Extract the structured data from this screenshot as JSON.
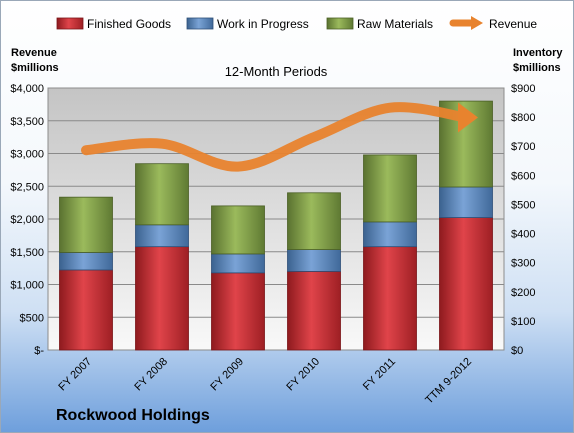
{
  "company_name": "Rockwood Holdings",
  "chart_data": {
    "type": "bar",
    "stacked": true,
    "title": "12-Month Periods",
    "categories": [
      "FY 2007",
      "FY 2008",
      "FY 2009",
      "FY 2010",
      "FY 2011",
      "TTM 9-2012"
    ],
    "left_axis": {
      "label_line1": "Revenue",
      "label_line2": "$millions",
      "ylim": [
        0,
        4000
      ],
      "ticks": [
        0,
        500,
        1000,
        1500,
        2000,
        2500,
        3000,
        3500,
        4000
      ],
      "tick_labels": [
        "$-",
        "$500",
        "$1,000",
        "$1,500",
        "$2,000",
        "$2,500",
        "$3,000",
        "$3,500",
        "$4,000"
      ]
    },
    "right_axis": {
      "label_line1": "Inventory",
      "label_line2": "$millions",
      "ylim": [
        0,
        900
      ],
      "ticks": [
        0,
        100,
        200,
        300,
        400,
        500,
        600,
        700,
        800,
        900
      ],
      "tick_labels": [
        "$0",
        "$100",
        "$200",
        "$300",
        "$400",
        "$500",
        "$600",
        "$700",
        "$800",
        "$900"
      ]
    },
    "series": [
      {
        "name": "Finished Goods",
        "axis": "right",
        "color": "#c0272d",
        "values": [
          275,
          355,
          265,
          270,
          355,
          455
        ]
      },
      {
        "name": "Work in Progress",
        "axis": "right",
        "color": "#4f81bd",
        "values": [
          60,
          75,
          65,
          75,
          85,
          105
        ]
      },
      {
        "name": "Raw Materials",
        "axis": "right",
        "color": "#77933c",
        "values": [
          190,
          210,
          165,
          195,
          230,
          295
        ]
      },
      {
        "name": "Revenue",
        "axis": "left",
        "type": "line",
        "color": "#e8832e",
        "values": [
          3050,
          3150,
          2800,
          3250,
          3700,
          3550
        ]
      }
    ],
    "legend_position": "top",
    "grid": true
  }
}
